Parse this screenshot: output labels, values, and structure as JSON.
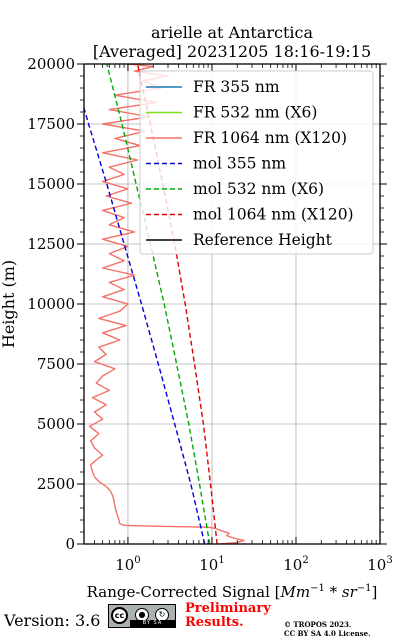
{
  "chart_data": {
    "type": "line",
    "title": "arielle at Antarctica",
    "subtitle": "[Averaged] 20231205 18:16-19:15",
    "xlabel_prefix": "Range-Corrected Signal [",
    "xlabel_unit": "Mm",
    "xlabel_sup1": "−1",
    "xlabel_mid": " * sr",
    "xlabel_sup2": "−1",
    "xlabel_suffix": "]",
    "ylabel": "Height (m)",
    "xscale": "log",
    "xlim": [
      0.3,
      1000
    ],
    "ylim": [
      0,
      20000
    ],
    "xticks": [
      1,
      10,
      100,
      1000
    ],
    "xtick_labels": [
      {
        "base": "10",
        "exp": "0"
      },
      {
        "base": "10",
        "exp": "1"
      },
      {
        "base": "10",
        "exp": "2"
      },
      {
        "base": "10",
        "exp": "3"
      }
    ],
    "yticks": [
      0,
      2500,
      5000,
      7500,
      10000,
      12500,
      15000,
      17500,
      20000
    ],
    "ytick_labels": [
      "0",
      "2500",
      "5000",
      "7500",
      "10000",
      "12500",
      "15000",
      "17500",
      "20000"
    ],
    "grid": true,
    "legend_position": "top-right",
    "series": [
      {
        "name": "FR 355 nm",
        "color": "#1f77b4",
        "style": "solid",
        "points": []
      },
      {
        "name": "FR 532 nm (X6)",
        "color": "#7fdf1f",
        "style": "solid",
        "points": []
      },
      {
        "name": "FR 1064 nm (X120)",
        "color": "#f47068",
        "style": "solid",
        "points": [
          [
            12,
            0
          ],
          [
            20,
            60
          ],
          [
            24,
            150
          ],
          [
            18,
            250
          ],
          [
            15,
            350
          ],
          [
            16,
            450
          ],
          [
            13,
            550
          ],
          [
            11,
            650
          ],
          [
            9,
            700
          ],
          [
            2,
            740
          ],
          [
            0.9,
            780
          ],
          [
            0.8,
            850
          ],
          [
            0.78,
            1000
          ],
          [
            0.75,
            1200
          ],
          [
            0.72,
            1400
          ],
          [
            0.7,
            1600
          ],
          [
            0.68,
            1800
          ],
          [
            0.66,
            2000
          ],
          [
            0.62,
            2200
          ],
          [
            0.55,
            2400
          ],
          [
            0.45,
            2600
          ],
          [
            0.4,
            2800
          ],
          [
            0.38,
            3000
          ],
          [
            0.36,
            3300
          ],
          [
            0.42,
            3500
          ],
          [
            0.5,
            3700
          ],
          [
            0.4,
            4000
          ],
          [
            0.36,
            4300
          ],
          [
            0.45,
            4600
          ],
          [
            0.35,
            4900
          ],
          [
            0.5,
            5200
          ],
          [
            0.4,
            5500
          ],
          [
            0.55,
            5800
          ],
          [
            0.38,
            6100
          ],
          [
            0.6,
            6400
          ],
          [
            0.42,
            6700
          ],
          [
            0.5,
            7000
          ],
          [
            0.7,
            7300
          ],
          [
            0.4,
            7600
          ],
          [
            0.55,
            7900
          ],
          [
            0.45,
            8200
          ],
          [
            0.8,
            8500
          ],
          [
            0.5,
            8800
          ],
          [
            0.95,
            9100
          ],
          [
            0.45,
            9400
          ],
          [
            0.8,
            9700
          ],
          [
            1.0,
            10000
          ],
          [
            0.5,
            10300
          ],
          [
            0.9,
            10600
          ],
          [
            0.6,
            10900
          ],
          [
            1.2,
            11200
          ],
          [
            0.5,
            11500
          ],
          [
            0.9,
            11800
          ],
          [
            0.6,
            12100
          ],
          [
            1.0,
            12400
          ],
          [
            0.5,
            12700
          ],
          [
            1.2,
            13000
          ],
          [
            0.6,
            13300
          ],
          [
            0.9,
            13600
          ],
          [
            0.5,
            13900
          ],
          [
            1.1,
            14200
          ],
          [
            0.55,
            14500
          ],
          [
            1.0,
            14800
          ],
          [
            0.5,
            15100
          ],
          [
            0.9,
            15400
          ],
          [
            0.6,
            15700
          ],
          [
            1.3,
            16000
          ],
          [
            0.5,
            16300
          ],
          [
            1.4,
            16600
          ],
          [
            0.7,
            16900
          ],
          [
            1.6,
            17200
          ],
          [
            0.5,
            17500
          ],
          [
            1.8,
            17800
          ],
          [
            0.6,
            18100
          ],
          [
            2.2,
            18400
          ],
          [
            0.7,
            18700
          ],
          [
            2.5,
            19000
          ],
          [
            1.5,
            19300
          ],
          [
            3.0,
            19500
          ],
          [
            1.2,
            19700
          ],
          [
            2.0,
            19900
          ],
          [
            1.0,
            20000
          ]
        ]
      },
      {
        "name": "mol 355 nm",
        "color": "#0000dd",
        "style": "dashed",
        "points": [
          [
            8.2,
            0
          ],
          [
            5.6,
            2500
          ],
          [
            3.6,
            5000
          ],
          [
            2.3,
            7500
          ],
          [
            1.45,
            10000
          ],
          [
            0.9,
            12500
          ],
          [
            0.56,
            15000
          ],
          [
            0.34,
            17500
          ],
          [
            0.21,
            20000
          ]
        ]
      },
      {
        "name": "mol 532 nm (X6)",
        "color": "#00aa00",
        "style": "dashed",
        "points": [
          [
            9.4,
            0
          ],
          [
            7.1,
            2500
          ],
          [
            5.3,
            5000
          ],
          [
            3.8,
            7500
          ],
          [
            2.7,
            10000
          ],
          [
            1.85,
            12500
          ],
          [
            1.25,
            15000
          ],
          [
            0.85,
            17500
          ],
          [
            0.56,
            20000
          ]
        ]
      },
      {
        "name": "mol 1064 nm (X120)",
        "color": "#dd0000",
        "style": "dashed",
        "points": [
          [
            11.5,
            0
          ],
          [
            9.6,
            2500
          ],
          [
            7.9,
            5000
          ],
          [
            6.2,
            7500
          ],
          [
            4.8,
            10000
          ],
          [
            3.6,
            12500
          ],
          [
            2.6,
            15000
          ],
          [
            1.85,
            17500
          ],
          [
            1.3,
            20000
          ]
        ]
      },
      {
        "name": "Reference Height",
        "color": "#000000",
        "style": "solid",
        "points": []
      }
    ]
  },
  "footer": {
    "version": "Version: 3.6",
    "license_badge_symbols": [
      "cc-icon",
      "by-icon",
      "sa-icon"
    ],
    "license_badge_text": "BY  SA",
    "preliminary_line1": "Preliminary",
    "preliminary_line2": "Results.",
    "copyright_line1": "© TROPOS 2023.",
    "copyright_line2": "CC BY SA 4.0 License."
  }
}
